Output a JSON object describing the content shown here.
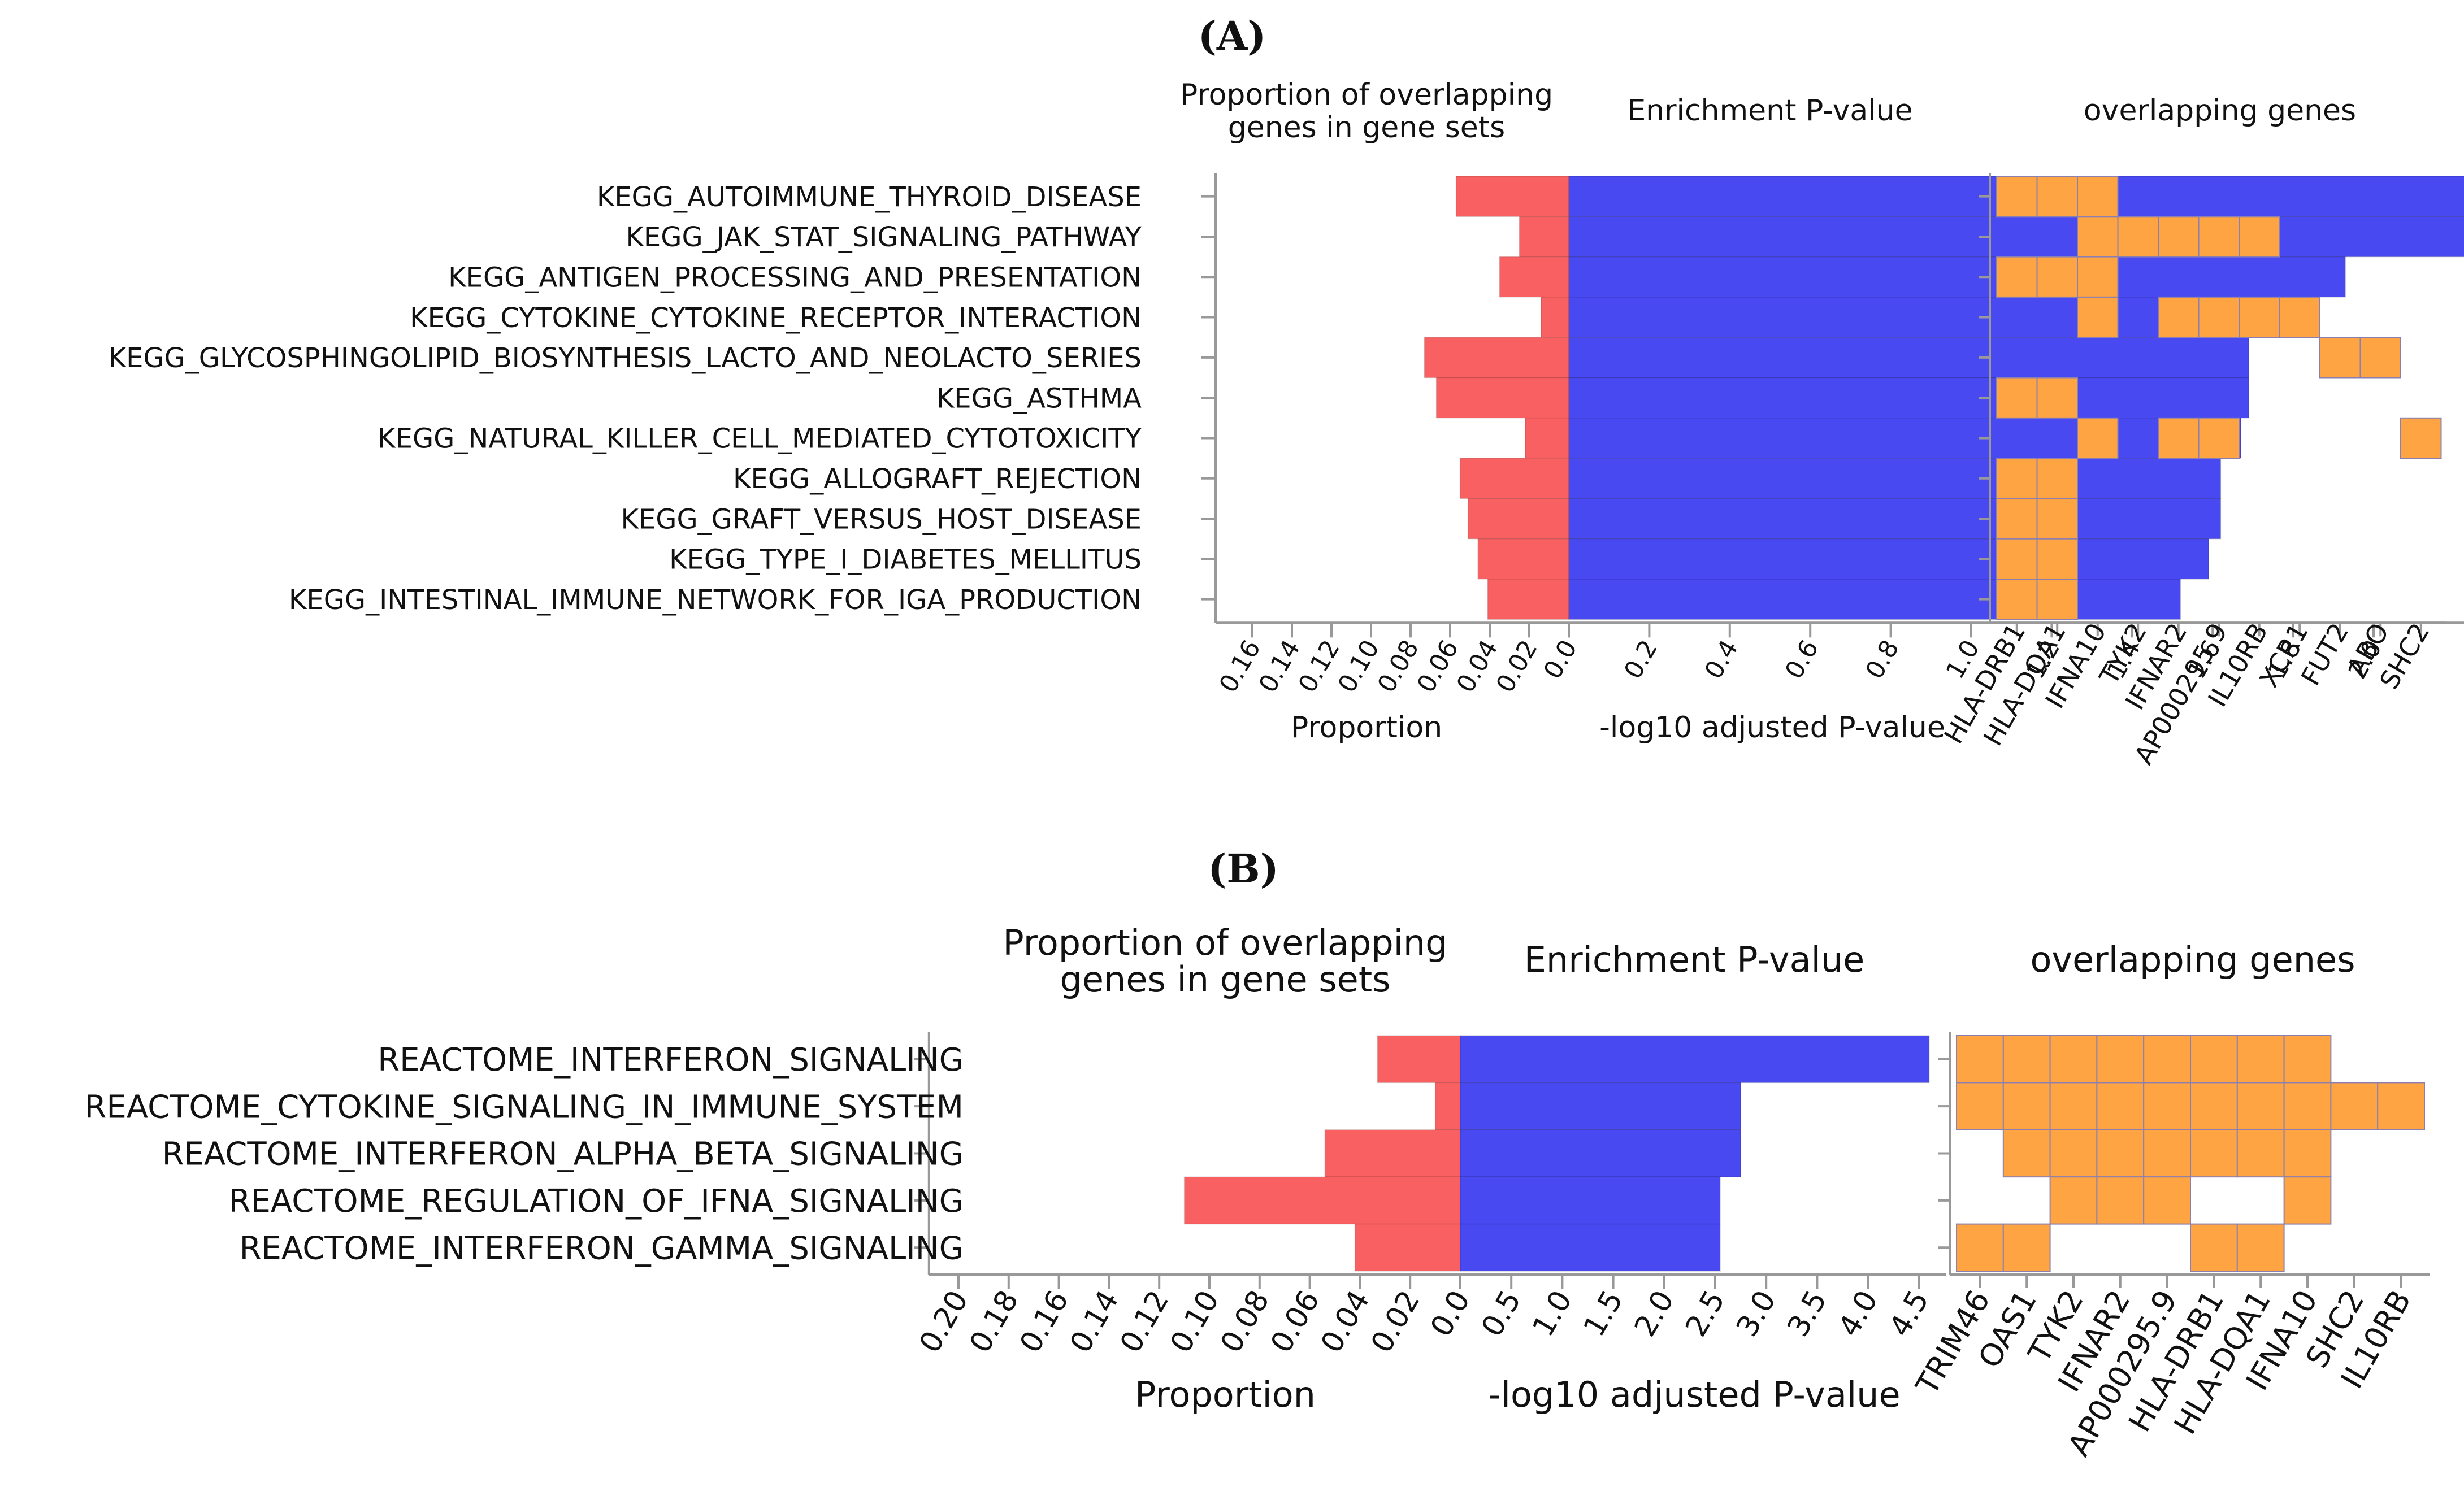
{
  "colors": {
    "proportion": "#f86061",
    "enrichment": "#4949f2",
    "gene": "#ffa442",
    "gene_border": "#8a7fb0",
    "axis": "#999999",
    "text": "#111111"
  },
  "chart_data": [
    {
      "type": "bar",
      "panel_label": "(A)",
      "panel_letter": "A",
      "titles": {
        "proportion_line1": "Proportion of overlapping",
        "proportion_line2": "genes in gene sets",
        "enrichment": "Enrichment P-value",
        "genes": "overlapping genes"
      },
      "categories": [
        "KEGG_AUTOIMMUNE_THYROID_DISEASE",
        "KEGG_JAK_STAT_SIGNALING_PATHWAY",
        "KEGG_ANTIGEN_PROCESSING_AND_PRESENTATION",
        "KEGG_CYTOKINE_CYTOKINE_RECEPTOR_INTERACTION",
        "KEGG_GLYCOSPHINGOLIPID_BIOSYNTHESIS_LACTO_AND_NEOLACTO_SERIES",
        "KEGG_ASTHMA",
        "KEGG_NATURAL_KILLER_CELL_MEDIATED_CYTOTOXICITY",
        "KEGG_ALLOGRAFT_REJECTION",
        "KEGG_GRAFT_VERSUS_HOST_DISEASE",
        "KEGG_TYPE_I_DIABETES_MELLITUS",
        "KEGG_INTESTINAL_IMMUNE_NETWORK_FOR_IGA_PRODUCTION"
      ],
      "proportion": {
        "xlabel": "Proportion",
        "ticks": [
          "0.16",
          "0.14",
          "0.12",
          "0.10",
          "0.08",
          "0.06",
          "0.04",
          "0.02",
          "0.0"
        ],
        "xlim": [
          0,
          0.17
        ],
        "values": [
          0.057,
          0.025,
          0.035,
          0.014,
          0.073,
          0.067,
          0.022,
          0.055,
          0.051,
          0.046,
          0.041
        ]
      },
      "enrichment": {
        "xlabel": "-log10 adjusted P-value",
        "ticks": [
          "0.0",
          "0.2",
          "0.4",
          "0.6",
          "0.8",
          "1.0",
          "1.2",
          "1.4",
          "1.6",
          "1.8",
          "2.0"
        ],
        "xlim": [
          0,
          2.2
        ],
        "values": [
          2.24,
          2.24,
          1.93,
          1.69,
          1.69,
          1.69,
          1.67,
          1.62,
          1.62,
          1.59,
          1.52
        ]
      },
      "genes": [
        "HLA-DRB1",
        "HLA-DQA1",
        "IFNA10",
        "TYK2",
        "IFNAR2",
        "AP000295.9",
        "IL10RB",
        "XCR1",
        "FUT2",
        "ABO",
        "SHC2"
      ],
      "matrix": [
        [
          1,
          1,
          1,
          0,
          0,
          0,
          0,
          0,
          0,
          0,
          0
        ],
        [
          0,
          0,
          1,
          1,
          1,
          1,
          1,
          0,
          0,
          0,
          0
        ],
        [
          1,
          1,
          1,
          0,
          0,
          0,
          0,
          0,
          0,
          0,
          0
        ],
        [
          0,
          0,
          1,
          0,
          1,
          1,
          1,
          1,
          0,
          0,
          0
        ],
        [
          0,
          0,
          0,
          0,
          0,
          0,
          0,
          0,
          1,
          1,
          0
        ],
        [
          1,
          1,
          0,
          0,
          0,
          0,
          0,
          0,
          0,
          0,
          0
        ],
        [
          0,
          0,
          1,
          0,
          1,
          1,
          0,
          0,
          0,
          0,
          1
        ],
        [
          1,
          1,
          0,
          0,
          0,
          0,
          0,
          0,
          0,
          0,
          0
        ],
        [
          1,
          1,
          0,
          0,
          0,
          0,
          0,
          0,
          0,
          0,
          0
        ],
        [
          1,
          1,
          0,
          0,
          0,
          0,
          0,
          0,
          0,
          0,
          0
        ],
        [
          1,
          1,
          0,
          0,
          0,
          0,
          0,
          0,
          0,
          0,
          0
        ]
      ]
    },
    {
      "type": "bar",
      "panel_label": "(B)",
      "panel_letter": "B",
      "titles": {
        "proportion_line1": "Proportion of overlapping",
        "proportion_line2": "genes in gene sets",
        "enrichment": "Enrichment P-value",
        "genes": "overlapping genes"
      },
      "categories": [
        "REACTOME_INTERFERON_SIGNALING",
        "REACTOME_CYTOKINE_SIGNALING_IN_IMMUNE_SYSTEM",
        "REACTOME_INTERFERON_ALPHA_BETA_SIGNALING",
        "REACTOME_REGULATION_OF_IFNA_SIGNALING",
        "REACTOME_INTERFERON_GAMMA_SIGNALING"
      ],
      "proportion": {
        "xlabel": "Proportion",
        "ticks": [
          "0.20",
          "0.18",
          "0.16",
          "0.14",
          "0.12",
          "0.10",
          "0.08",
          "0.06",
          "0.04",
          "0.02",
          "0.0"
        ],
        "xlim": [
          0,
          0.205
        ],
        "values": [
          0.033,
          0.01,
          0.054,
          0.11,
          0.042
        ]
      },
      "enrichment": {
        "xlabel": "-log10 adjusted P-value",
        "ticks": [
          "0.0",
          "0.5",
          "1.0",
          "1.5",
          "2.0",
          "2.5",
          "3.0",
          "3.5",
          "4.0",
          "4.5"
        ],
        "xlim": [
          0,
          4.6
        ],
        "values": [
          4.6,
          2.75,
          2.75,
          2.55,
          2.55
        ]
      },
      "genes": [
        "TRIM46",
        "OAS1",
        "TYK2",
        "IFNAR2",
        "AP000295.9",
        "HLA-DRB1",
        "HLA-DQA1",
        "IFNA10",
        "SHC2",
        "IL10RB"
      ],
      "matrix": [
        [
          1,
          1,
          1,
          1,
          1,
          1,
          1,
          1,
          0,
          0
        ],
        [
          1,
          1,
          1,
          1,
          1,
          1,
          1,
          1,
          1,
          1
        ],
        [
          0,
          1,
          1,
          1,
          1,
          1,
          1,
          1,
          0,
          0
        ],
        [
          0,
          0,
          1,
          1,
          1,
          0,
          0,
          1,
          0,
          0
        ],
        [
          1,
          1,
          0,
          0,
          0,
          1,
          1,
          0,
          0,
          0
        ]
      ]
    }
  ]
}
